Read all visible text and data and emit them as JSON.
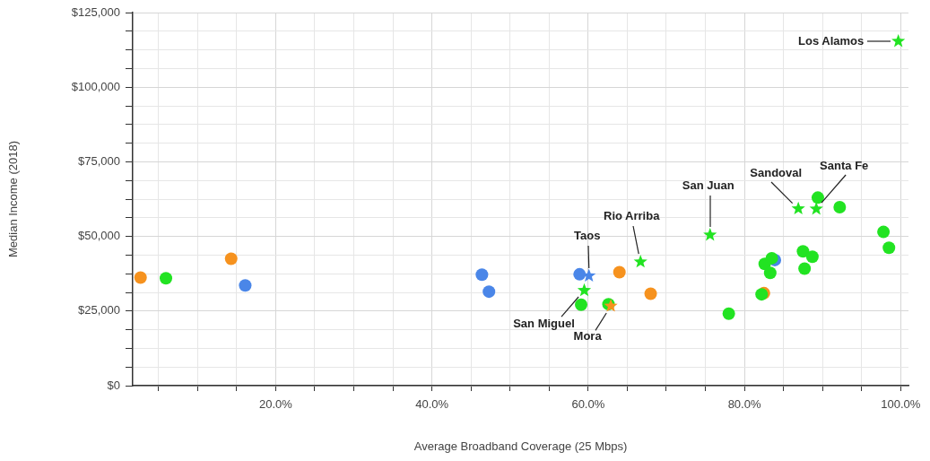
{
  "chart_data": {
    "type": "scatter",
    "xlabel": "Average Broadband Coverage (25 Mbps)",
    "ylabel": "Median Income (2018)",
    "xlim": [
      1.7,
      101
    ],
    "ylim": [
      0,
      125000
    ],
    "xticks": [
      {
        "value": 5,
        "label": null
      },
      {
        "value": 10,
        "label": null
      },
      {
        "value": 15,
        "label": null
      },
      {
        "value": 20,
        "label": "20.0%"
      },
      {
        "value": 25,
        "label": null
      },
      {
        "value": 30,
        "label": null
      },
      {
        "value": 35,
        "label": null
      },
      {
        "value": 40,
        "label": "40.0%"
      },
      {
        "value": 45,
        "label": null
      },
      {
        "value": 50,
        "label": null
      },
      {
        "value": 55,
        "label": null
      },
      {
        "value": 60,
        "label": "60.0%"
      },
      {
        "value": 65,
        "label": null
      },
      {
        "value": 70,
        "label": null
      },
      {
        "value": 75,
        "label": null
      },
      {
        "value": 80,
        "label": "80.0%"
      },
      {
        "value": 85,
        "label": null
      },
      {
        "value": 90,
        "label": null
      },
      {
        "value": 95,
        "label": null
      },
      {
        "value": 100,
        "label": "100.0%"
      }
    ],
    "yticks": [
      {
        "value": 0,
        "label": "$0"
      },
      {
        "value": 6250,
        "label": null
      },
      {
        "value": 12500,
        "label": null
      },
      {
        "value": 18750,
        "label": null
      },
      {
        "value": 25000,
        "label": "$25,000"
      },
      {
        "value": 31250,
        "label": null
      },
      {
        "value": 37500,
        "label": null
      },
      {
        "value": 43750,
        "label": null
      },
      {
        "value": 50000,
        "label": "$50,000"
      },
      {
        "value": 56250,
        "label": null
      },
      {
        "value": 62500,
        "label": null
      },
      {
        "value": 68750,
        "label": null
      },
      {
        "value": 75000,
        "label": "$75,000"
      },
      {
        "value": 81250,
        "label": null
      },
      {
        "value": 87500,
        "label": null
      },
      {
        "value": 93750,
        "label": null
      },
      {
        "value": 100000,
        "label": "$100,000"
      },
      {
        "value": 106250,
        "label": null
      },
      {
        "value": 112500,
        "label": null
      },
      {
        "value": 118750,
        "label": null
      },
      {
        "value": 125000,
        "label": "$125,000"
      }
    ],
    "grid": true,
    "series": [
      {
        "color": "#4a86e8",
        "marker": "circle",
        "x": [
          16.1,
          46.4,
          47.3,
          58.9,
          83.9
        ],
        "values": [
          33600,
          37200,
          31500,
          37300,
          42100
        ]
      },
      {
        "color": "#4a86e8",
        "marker": "star",
        "x": [
          60.1
        ],
        "values": [
          36800
        ]
      },
      {
        "color": "#f6921e",
        "marker": "circle",
        "x": [
          2.7,
          14.3,
          64.0,
          68.0,
          82.5
        ],
        "values": [
          36200,
          42500,
          38000,
          30800,
          31000
        ]
      },
      {
        "color": "#f6921e",
        "marker": "star",
        "x": [
          62.9
        ],
        "values": [
          26700
        ]
      },
      {
        "color": "#22e322",
        "marker": "circle",
        "x": [
          5.95,
          59.1,
          62.6,
          78.0,
          82.2,
          82.6,
          83.3,
          83.5,
          87.5,
          88.7,
          87.7,
          89.4,
          92.2,
          97.8,
          98.5
        ],
        "values": [
          36000,
          27100,
          27300,
          24100,
          30600,
          40800,
          37800,
          42700,
          45000,
          43200,
          39200,
          63000,
          59800,
          51500,
          46200
        ]
      },
      {
        "color": "#22e322",
        "marker": "star",
        "x": [
          59.5,
          66.7,
          75.6,
          86.9,
          89.2,
          99.7
        ],
        "values": [
          31900,
          41500,
          50500,
          59300,
          59200,
          115400
        ]
      }
    ],
    "annotations": [
      {
        "text": "Los Alamos",
        "x": 99.7,
        "y": 115400
      },
      {
        "text": "San Juan",
        "x": 75.6,
        "y": 50500
      },
      {
        "text": "Sandoval",
        "x": 86.9,
        "y": 59300
      },
      {
        "text": "Santa Fe",
        "x": 89.2,
        "y": 59200
      },
      {
        "text": "Rio Arriba",
        "x": 66.7,
        "y": 41500
      },
      {
        "text": "Taos",
        "x": 60.1,
        "y": 36800
      },
      {
        "text": "San Miguel",
        "x": 59.5,
        "y": 31900
      },
      {
        "text": "Mora",
        "x": 62.9,
        "y": 26700
      }
    ]
  }
}
